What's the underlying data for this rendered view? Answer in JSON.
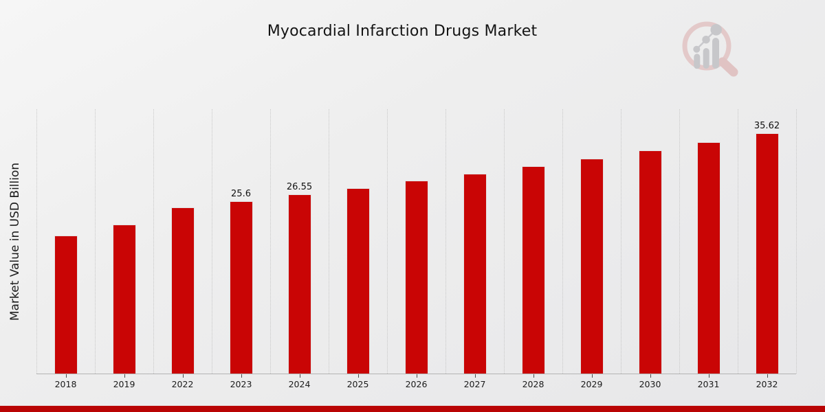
{
  "title": "Myocardial Infarction Drugs Market",
  "chart_data": {
    "type": "bar",
    "title": "Myocardial Infarction Drugs Market",
    "xlabel": "",
    "ylabel": "Market Value in USD Billion",
    "categories": [
      "2018",
      "2019",
      "2022",
      "2023",
      "2024",
      "2025",
      "2026",
      "2027",
      "2028",
      "2029",
      "2030",
      "2031",
      "2032"
    ],
    "values": [
      20.5,
      22.1,
      24.68,
      25.6,
      26.55,
      27.54,
      28.56,
      29.62,
      30.72,
      31.86,
      33.04,
      34.27,
      35.62
    ],
    "point_labels": {
      "2023": "25.6",
      "2024": "26.55",
      "2032": "35.62"
    },
    "ylim": [
      0,
      39.3
    ],
    "grid": "vertical-dotted",
    "legend": "none",
    "bar_color": "#c90505",
    "gridline_color": "#c7c7c7",
    "axis_color": "#b3b3b3"
  },
  "footer": {
    "accent_color": "#b90404"
  },
  "watermark": {
    "name": "magnifier-bar-chart-logo",
    "ring_color": "#e3c6c6",
    "bars_color": "#c3c3c7"
  }
}
